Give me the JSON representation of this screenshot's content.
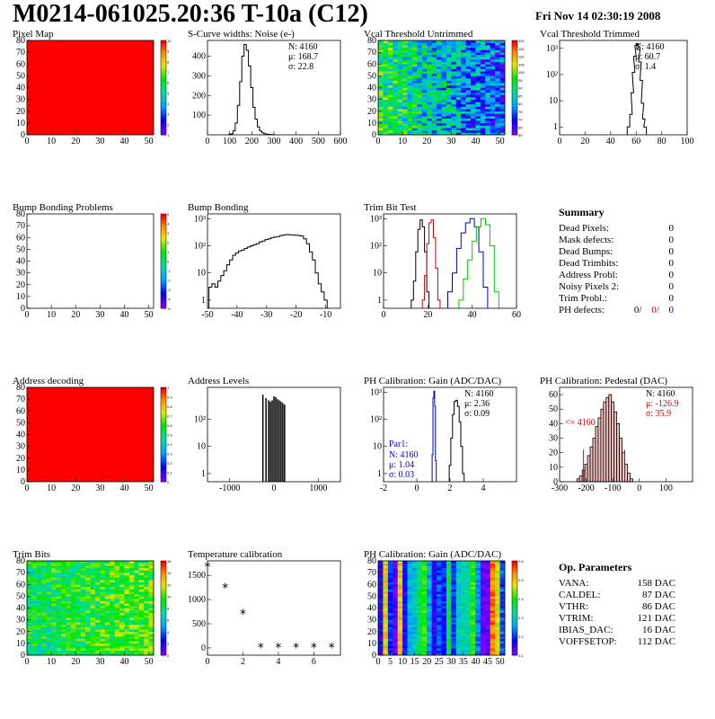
{
  "page": {
    "title": "M0214-061025.20:36 T-10a (C12)",
    "date": "Fri Nov 14 02:30:19 2008"
  },
  "chart_data": [
    {
      "id": "pixel-map",
      "type": "heatmap",
      "title": "Pixel Map",
      "x_ticks": [
        "0",
        "10",
        "20",
        "30",
        "40",
        "50"
      ],
      "y_ticks": [
        "0",
        "10",
        "20",
        "30",
        "40",
        "50",
        "60",
        "70",
        "80"
      ],
      "xlim": [
        0,
        52
      ],
      "ylim": [
        0,
        80
      ],
      "palette_ticks": [
        "1",
        "2",
        "3",
        "4",
        "5",
        "6",
        "7",
        "8",
        "9",
        "10"
      ],
      "fill_color": "#ff0000",
      "pattern": "uniform"
    },
    {
      "id": "noise",
      "type": "line",
      "title": "S-Curve widths: Noise (e-)",
      "xlim": [
        0,
        600
      ],
      "ylim": [
        0,
        480
      ],
      "x_ticks": [
        0,
        100,
        200,
        300,
        400,
        500,
        600
      ],
      "y_ticks": [
        100,
        200,
        300,
        400
      ],
      "x": [
        100,
        110,
        120,
        130,
        140,
        150,
        160,
        170,
        180,
        190,
        200,
        210,
        220,
        230,
        240,
        250,
        260,
        270,
        280,
        290,
        300
      ],
      "values": [
        2,
        5,
        20,
        60,
        150,
        270,
        400,
        460,
        430,
        350,
        240,
        140,
        80,
        40,
        20,
        10,
        5,
        3,
        2,
        1,
        0
      ],
      "stats": [
        "N: 4160",
        "μ: 168.7",
        "σ: 22.8"
      ]
    },
    {
      "id": "vcal-untrimmed",
      "type": "heatmap",
      "title": "Vcal Threshold Untrimmed",
      "x_ticks": [
        "0",
        "10",
        "20",
        "30",
        "40",
        "50"
      ],
      "y_ticks": [
        "0",
        "10",
        "20",
        "30",
        "40",
        "50",
        "60",
        "70",
        "80"
      ],
      "xlim": [
        0,
        52
      ],
      "ylim": [
        0,
        80
      ],
      "palette_ticks": [
        "60",
        "65",
        "70",
        "75",
        "80",
        "85",
        "90",
        "95",
        "100",
        "105",
        "110",
        "115",
        "120"
      ],
      "pattern": "gradient-blue-right"
    },
    {
      "id": "vcal-trimmed",
      "type": "line",
      "title": "Vcal Threshold Trimmed",
      "scale": "log",
      "xlim": [
        0,
        100
      ],
      "ylim": [
        0.5,
        2000
      ],
      "x_ticks": [
        0,
        20,
        40,
        60,
        80,
        100
      ],
      "y_tick_labels": [
        "1",
        "10",
        "10²",
        "10³"
      ],
      "x": [
        54,
        56,
        57,
        58,
        59,
        60,
        61,
        62,
        63,
        64,
        65,
        66,
        67
      ],
      "values": [
        1,
        3,
        20,
        120,
        500,
        1300,
        1500,
        900,
        300,
        60,
        8,
        2,
        1
      ],
      "stats": [
        "N: 4160",
        "μ: 60.7",
        "σ: 1.4"
      ]
    },
    {
      "id": "bump-problems",
      "type": "heatmap",
      "title": "Bump Bonding Problems",
      "x_ticks": [
        "0",
        "10",
        "20",
        "30",
        "40",
        "50"
      ],
      "y_ticks": [
        "0",
        "10",
        "20",
        "30",
        "40",
        "50",
        "60",
        "70",
        "80"
      ],
      "xlim": [
        0,
        52
      ],
      "ylim": [
        0,
        80
      ],
      "palette_ticks": [
        "-5",
        "-4",
        "-3",
        "-2",
        "-1",
        "0",
        "1",
        "2",
        "3",
        "4",
        "5"
      ],
      "pattern": "empty"
    },
    {
      "id": "bump-bonding",
      "type": "line",
      "title": "Bump Bonding",
      "scale": "log",
      "xlim": [
        -50,
        -5
      ],
      "ylim": [
        0.5,
        1500
      ],
      "x_ticks": [
        -50,
        -40,
        -30,
        -20,
        -10
      ],
      "y_tick_labels": [
        "1",
        "10",
        "10²",
        "10³"
      ],
      "x": [
        -49,
        -48,
        -47,
        -46,
        -45,
        -44,
        -43,
        -42,
        -41,
        -40,
        -39,
        -38,
        -37,
        -36,
        -35,
        -34,
        -33,
        -32,
        -31,
        -30,
        -29,
        -28,
        -27,
        -26,
        -25,
        -24,
        -23,
        -22,
        -21,
        -20,
        -19,
        -18,
        -17,
        -16,
        -15,
        -14,
        -13,
        -12,
        -11,
        -10
      ],
      "values": [
        3,
        4,
        3,
        5,
        8,
        12,
        20,
        30,
        45,
        55,
        65,
        70,
        80,
        90,
        100,
        110,
        120,
        140,
        150,
        170,
        180,
        200,
        210,
        220,
        240,
        250,
        260,
        255,
        250,
        245,
        240,
        230,
        180,
        120,
        60,
        30,
        10,
        4,
        2,
        1
      ]
    },
    {
      "id": "trim-bit-test",
      "type": "line",
      "title": "Trim Bit Test",
      "scale": "log",
      "xlim": [
        0,
        60
      ],
      "ylim": [
        0.5,
        1500
      ],
      "x_ticks": [
        0,
        20,
        40,
        60
      ],
      "y_tick_labels": [
        "1",
        "10",
        "10²",
        "10³"
      ],
      "series": [
        {
          "color": "#000000",
          "x": [
            13,
            14,
            15,
            16,
            17,
            18,
            19,
            20
          ],
          "values": [
            1,
            5,
            60,
            400,
            900,
            500,
            60,
            2
          ]
        },
        {
          "color": "#cc0000",
          "x": [
            18,
            19,
            20,
            21,
            22,
            23,
            24,
            25
          ],
          "values": [
            1,
            8,
            120,
            700,
            900,
            200,
            15,
            1
          ]
        },
        {
          "color": "#0000cc",
          "x": [
            30,
            32,
            34,
            36,
            38,
            40,
            42,
            44,
            46
          ],
          "values": [
            2,
            10,
            80,
            300,
            700,
            1000,
            500,
            60,
            3
          ]
        },
        {
          "color": "#00cc00",
          "x": [
            35,
            37,
            39,
            41,
            43,
            45,
            47,
            49,
            51
          ],
          "values": [
            1,
            6,
            30,
            150,
            500,
            1000,
            600,
            100,
            2
          ]
        }
      ]
    },
    {
      "id": "address-decoding",
      "type": "heatmap",
      "title": "Address decoding",
      "x_ticks": [
        "0",
        "10",
        "20",
        "30",
        "40",
        "50"
      ],
      "y_ticks": [
        "0",
        "10",
        "20",
        "30",
        "40",
        "50",
        "60",
        "70",
        "80"
      ],
      "xlim": [
        0,
        52
      ],
      "ylim": [
        0,
        80
      ],
      "palette_ticks": [
        "0",
        "0.1",
        "0.2",
        "0.3",
        "0.4",
        "0.5",
        "0.6",
        "0.7",
        "0.8",
        "0.9",
        "1"
      ],
      "fill_color": "#ff0000",
      "pattern": "uniform"
    },
    {
      "id": "address-levels",
      "type": "bar",
      "title": "Address Levels",
      "scale": "log",
      "xlim": [
        -1500,
        1500
      ],
      "ylim": [
        0.5,
        1500
      ],
      "x_ticks": [
        -1000,
        0,
        1000
      ],
      "y_tick_labels": [
        "1",
        "10",
        "10²"
      ],
      "x": [
        -250,
        -180,
        -120,
        -80,
        -40,
        0,
        40,
        80,
        120,
        160,
        200,
        240
      ],
      "values": [
        800,
        600,
        500,
        450,
        500,
        700,
        650,
        550,
        500,
        450,
        400,
        350
      ]
    },
    {
      "id": "ph-gain",
      "type": "line",
      "title": "PH Calibration: Gain (ADC/DAC)",
      "scale": "log",
      "xlim": [
        -2,
        6
      ],
      "ylim": [
        0.5,
        1500
      ],
      "x_ticks": [
        -2,
        0,
        2,
        4
      ],
      "y_tick_labels": [
        "1",
        "10",
        "10²",
        "10³"
      ],
      "series": [
        {
          "color": "#000000",
          "x": [
            2.0,
            2.1,
            2.2,
            2.3,
            2.4,
            2.5,
            2.6,
            2.7,
            2.8
          ],
          "values": [
            2,
            20,
            150,
            450,
            500,
            300,
            80,
            10,
            1
          ]
        },
        {
          "color": "#0000cc",
          "x": [
            0.95,
            1.0,
            1.05,
            1.1,
            1.15
          ],
          "values": [
            5,
            600,
            1100,
            300,
            3
          ]
        }
      ],
      "stats": [
        "N: 4160",
        "μ: 2.36",
        "σ: 0.09"
      ],
      "par1_label": "Par1:",
      "stats2": [
        "N: 4160",
        "μ: 1.04",
        "σ: 0.03"
      ]
    },
    {
      "id": "ph-pedestal",
      "type": "bar",
      "title": "PH Calibration: Pedestal (DAC)",
      "xlim": [
        -300,
        200
      ],
      "ylim": [
        0,
        65
      ],
      "x_ticks": [
        -300,
        -200,
        -100,
        0,
        100
      ],
      "y_ticks": [
        0,
        10,
        20,
        30,
        40,
        50,
        60
      ],
      "x": [
        -230,
        -220,
        -210,
        -200,
        -190,
        -180,
        -170,
        -160,
        -150,
        -140,
        -130,
        -120,
        -110,
        -100,
        -90,
        -80,
        -70,
        -60,
        -50,
        -40,
        -30
      ],
      "values": [
        2,
        4,
        8,
        12,
        18,
        24,
        30,
        38,
        44,
        50,
        55,
        58,
        60,
        55,
        48,
        40,
        30,
        20,
        12,
        6,
        2
      ],
      "stats": [
        "N: 4160",
        "μ: -126.9",
        "σ: 35.9"
      ],
      "marker_label": "<= 4160"
    },
    {
      "id": "trim-bits",
      "type": "heatmap",
      "title": "Trim Bits",
      "x_ticks": [
        "0",
        "10",
        "20",
        "30",
        "40",
        "50"
      ],
      "y_ticks": [
        "0",
        "10",
        "20",
        "30",
        "40",
        "50",
        "60",
        "70",
        "80"
      ],
      "xlim": [
        0,
        52
      ],
      "ylim": [
        0,
        80
      ],
      "palette_ticks": [
        "0",
        "2",
        "4",
        "6",
        "8",
        "10",
        "12",
        "14",
        "16"
      ],
      "pattern": "noise-green-yellow"
    },
    {
      "id": "temperature",
      "type": "scatter",
      "title": "Temperature calibration",
      "xlim": [
        0,
        7.5
      ],
      "ylim": [
        -150,
        1800
      ],
      "x_ticks": [
        0,
        2,
        4,
        6
      ],
      "y_ticks": [
        0,
        500,
        1000,
        1500
      ],
      "x": [
        0,
        1,
        2,
        3,
        4,
        5,
        6,
        7
      ],
      "values": [
        1680,
        1240,
        700,
        5,
        5,
        5,
        5,
        5
      ]
    },
    {
      "id": "ph-gain-map",
      "type": "heatmap",
      "title": "PH Calibration: Gain (ADC/DAC)",
      "x_ticks": [
        "0",
        "5",
        "10",
        "15",
        "20",
        "25",
        "30",
        "35",
        "40",
        "45",
        "50"
      ],
      "y_ticks": [
        "0",
        "10",
        "20",
        "30",
        "40",
        "50",
        "60",
        "70",
        "80"
      ],
      "xlim": [
        0,
        52
      ],
      "ylim": [
        0,
        80
      ],
      "palette_ticks": [
        "2.1",
        "2.2",
        "2.3",
        "2.4",
        "2.5",
        "2.6"
      ],
      "pattern": "columns"
    }
  ],
  "summary": {
    "header": "Summary",
    "rows": [
      {
        "label": "Dead Pixels:",
        "value": "0"
      },
      {
        "label": "Mask defects:",
        "value": "0"
      },
      {
        "label": "Dead Bumps:",
        "value": "0"
      },
      {
        "label": "Dead Trimbits:",
        "value": "0"
      },
      {
        "label": "Address Probl:",
        "value": "0"
      },
      {
        "label": "Noisy Pixels 2:",
        "value": "0"
      },
      {
        "label": "Trim Probl.:",
        "value": "0"
      }
    ],
    "ph_label": "PH defects:",
    "ph_values": [
      "0/",
      "0/",
      "0"
    ],
    "ph_colors": [
      "#000000",
      "#cc0000",
      "#0000cc"
    ]
  },
  "op_params": {
    "header": "Op. Parameters",
    "rows": [
      {
        "label": "VANA:",
        "value": "158 DAC"
      },
      {
        "label": "CALDEL:",
        "value": "87 DAC"
      },
      {
        "label": "VTHR:",
        "value": "86 DAC"
      },
      {
        "label": "VTRIM:",
        "value": "121 DAC"
      },
      {
        "label": "IBIAS_DAC:",
        "value": "16 DAC"
      },
      {
        "label": "VOFFSETOP:",
        "value": "112 DAC"
      }
    ]
  }
}
